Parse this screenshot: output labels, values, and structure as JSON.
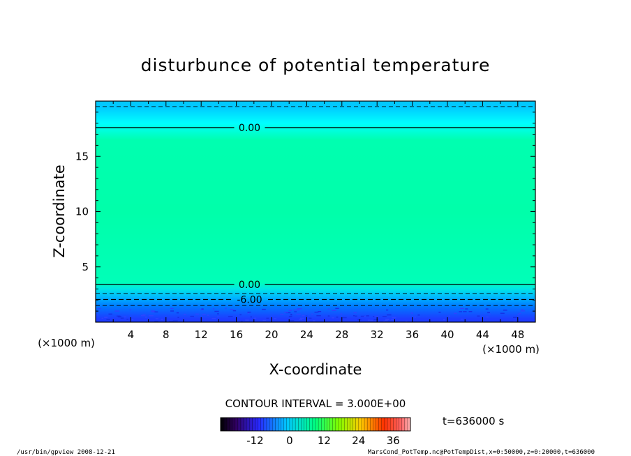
{
  "chart_data": {
    "type": "heatmap",
    "title": "disturbunce of potential temperature",
    "xlabel": "X-coordinate",
    "ylabel": "Z-coordinate",
    "x_unit": "(×1000 m)",
    "z_unit": "(×1000 m)",
    "xlim": [
      0,
      50
    ],
    "ylim": [
      0,
      20
    ],
    "x_ticks": [
      "4",
      "8",
      "12",
      "16",
      "20",
      "24",
      "28",
      "32",
      "36",
      "40",
      "44",
      "48"
    ],
    "y_ticks": [
      "5",
      "10",
      "15"
    ],
    "contour_lines": [
      {
        "z": 17.6,
        "label": "0.00",
        "style": "solid"
      },
      {
        "z": 3.4,
        "label": "0.00",
        "style": "solid"
      },
      {
        "z": 2.05,
        "label": "-6.00",
        "style": "dashed"
      }
    ],
    "vertical_profile": [
      {
        "z": 19.5,
        "color": "#00c8ff"
      },
      {
        "z": 18.0,
        "color": "#00ffff"
      },
      {
        "z": 16.5,
        "color": "#00ffb0"
      },
      {
        "z": 10.0,
        "color": "#00ffaa"
      },
      {
        "z": 3.6,
        "color": "#00ffb8"
      },
      {
        "z": 3.0,
        "color": "#00e6e6"
      },
      {
        "z": 2.2,
        "color": "#00b4ff"
      },
      {
        "z": 1.4,
        "color": "#0078ff"
      },
      {
        "z": 0.3,
        "color": "#1e3cff"
      }
    ],
    "contour_interval": "CONTOUR INTERVAL = 3.000E+00",
    "time_label": "t=636000 s",
    "colorbar": {
      "ticks": [
        "-12",
        "0",
        "12",
        "24",
        "36"
      ],
      "tick_values": [
        -12,
        0,
        12,
        24,
        36
      ],
      "range": [
        -24,
        42
      ]
    }
  },
  "footer": {
    "left": "/usr/bin/gpview  2008-12-21",
    "right": "MarsCond_PotTemp.nc@PotTempDist,x=0:50000,z=0:20000,t=636000"
  }
}
